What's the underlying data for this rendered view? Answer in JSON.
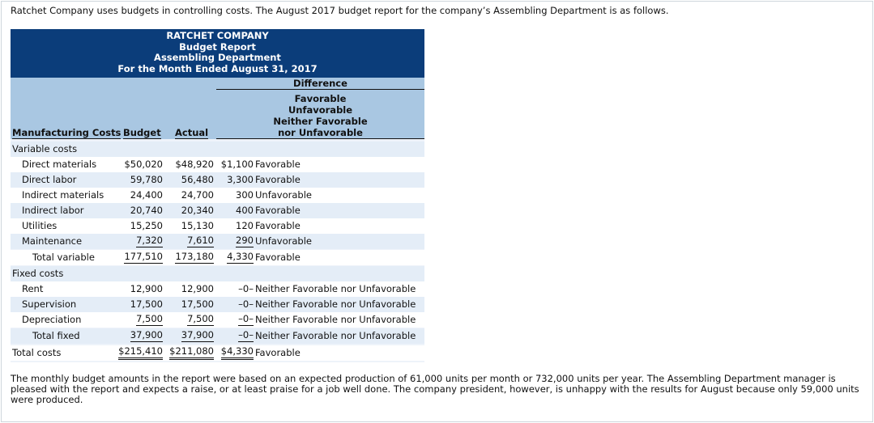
{
  "intro": "Ratchet Company uses budgets in controlling costs. The August 2017 budget report for the company’s Assembling Department is as follows.",
  "report": {
    "company": "RATCHET COMPANY",
    "title": "Budget Report",
    "department": "Assembling Department",
    "period": "For the Month Ended August 31, 2017"
  },
  "headers": {
    "difference": "Difference",
    "diff_lines": [
      "Favorable",
      "Unfavorable",
      "Neither Favorable",
      "nor Unfavorable"
    ],
    "mfg": "Manufacturing Costs",
    "budget": "Budget",
    "actual": "Actual"
  },
  "variable_label": "Variable costs",
  "variable": [
    {
      "label": "Direct materials",
      "budget": "$50,020",
      "actual": "$48,920",
      "diff": "$1,100",
      "status": "Favorable"
    },
    {
      "label": "Direct labor",
      "budget": "59,780",
      "actual": "56,480",
      "diff": "3,300",
      "status": "Favorable"
    },
    {
      "label": "Indirect materials",
      "budget": "24,400",
      "actual": "24,700",
      "diff": "300",
      "status": "Unfavorable"
    },
    {
      "label": "Indirect labor",
      "budget": "20,740",
      "actual": "20,340",
      "diff": "400",
      "status": "Favorable"
    },
    {
      "label": "Utilities",
      "budget": "15,250",
      "actual": "15,130",
      "diff": "120",
      "status": "Favorable"
    },
    {
      "label": "Maintenance",
      "budget": "7,320",
      "actual": "7,610",
      "diff": "290",
      "status": "Unfavorable"
    }
  ],
  "total_variable": {
    "label": "Total variable",
    "budget": "177,510",
    "actual": "173,180",
    "diff": "4,330",
    "status": "Favorable"
  },
  "fixed_label": "Fixed costs",
  "fixed": [
    {
      "label": "Rent",
      "budget": "12,900",
      "actual": "12,900",
      "diff": "–0–",
      "status": "Neither Favorable nor Unfavorable"
    },
    {
      "label": "Supervision",
      "budget": "17,500",
      "actual": "17,500",
      "diff": "–0–",
      "status": "Neither Favorable nor Unfavorable"
    },
    {
      "label": "Depreciation",
      "budget": "7,500",
      "actual": "7,500",
      "diff": "–0–",
      "status": "Neither Favorable nor Unfavorable"
    }
  ],
  "total_fixed": {
    "label": "Total fixed",
    "budget": "37,900",
    "actual": "37,900",
    "diff": "–0–",
    "status": "Neither Favorable nor Unfavorable"
  },
  "total_costs": {
    "label": "Total costs",
    "budget": "$215,410",
    "actual": "$211,080",
    "diff": "$4,330",
    "status": "Favorable"
  },
  "footer": "The monthly budget amounts in the report were based on an expected production of 61,000 units per month or 732,000 units per year. The Assembling Department manager is pleased with the report and expects a raise, or at least praise for a job well done. The company president, however, is unhappy with the results for August because only 59,000 units were produced."
}
